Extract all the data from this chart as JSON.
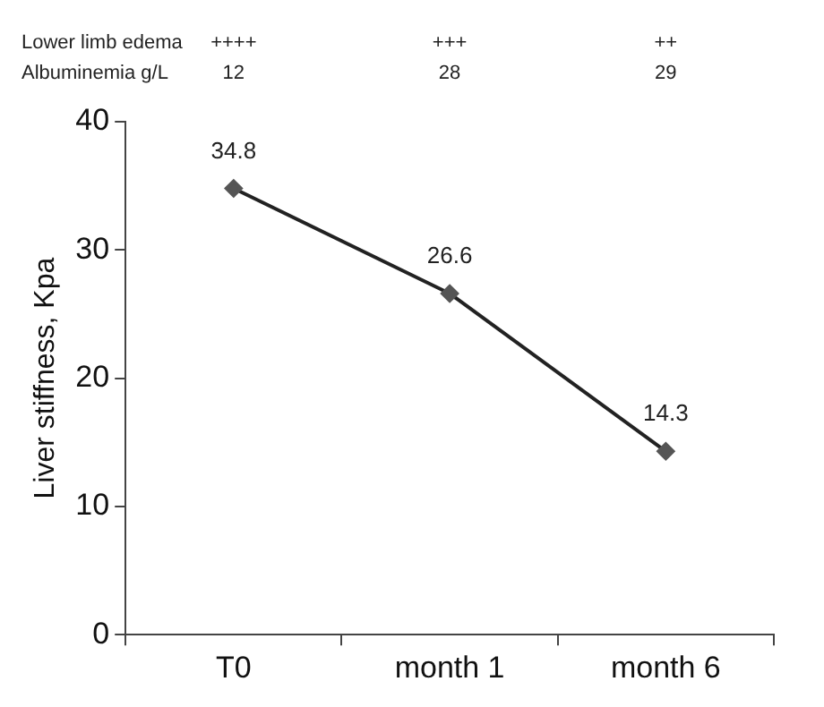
{
  "chart_data": {
    "type": "line",
    "ylabel": "Liver stiffness, Kpa",
    "categories": [
      "T0",
      "month 1",
      "month 6"
    ],
    "series": [
      {
        "color": "#222222",
        "values": [
          34.8,
          26.6,
          14.3
        ]
      }
    ],
    "ylim": [
      0,
      40
    ],
    "yticks": [
      0,
      10,
      20,
      30,
      40
    ],
    "grid": false,
    "legend": false,
    "marker": "diamond",
    "line_style": "solid",
    "data_labels": true,
    "annotations": [
      "Lower limb edema",
      "++++",
      "+++",
      "++",
      "Albuminemia g/L",
      "12",
      "28",
      "29"
    ]
  }
}
